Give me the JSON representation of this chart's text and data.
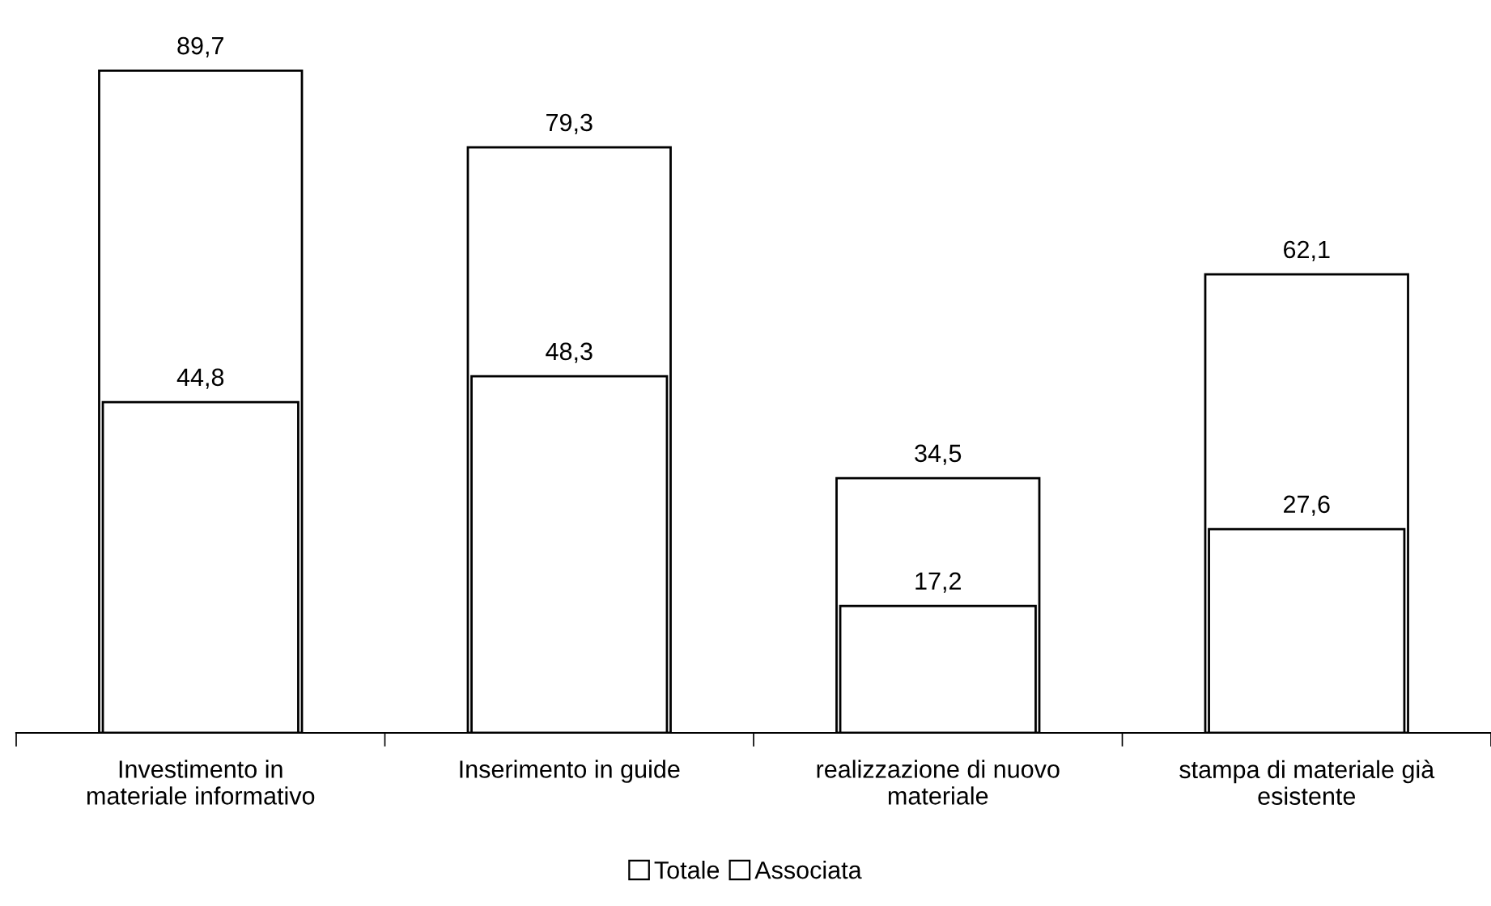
{
  "chart_data": {
    "type": "bar",
    "categories": [
      "Investimento in\nmateriale informativo",
      "Inserimento in guide",
      "realizzazione di nuovo\nmateriale",
      "stampa di materiale già\nesistente"
    ],
    "series": [
      {
        "name": "Totale",
        "color": "#ffffff",
        "values": [
          89.7,
          79.3,
          34.5,
          62.1
        ],
        "value_labels": [
          "89,7",
          "79,3",
          "34,5",
          "62,1"
        ]
      },
      {
        "name": "Associata",
        "color": "#ffffff",
        "values": [
          44.8,
          48.3,
          17.2,
          27.6
        ],
        "value_labels": [
          "44,8",
          "48,3",
          "17,2",
          "27,6"
        ]
      }
    ],
    "legend": "bottom",
    "grid": false
  }
}
